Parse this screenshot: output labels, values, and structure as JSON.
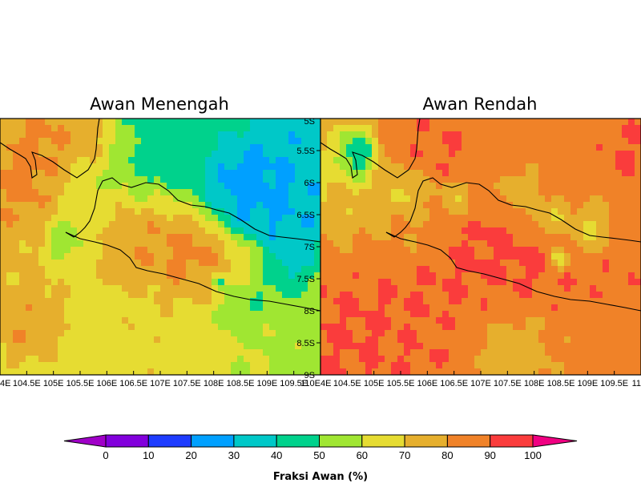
{
  "chart_data": [
    {
      "type": "heatmap",
      "title": "Awan Menengah",
      "xlim": [
        104,
        110
      ],
      "ylim": [
        -9,
        -5
      ],
      "x_ticks": [
        "4E",
        "104.5E",
        "105E",
        "105.5E",
        "106E",
        "106.5E",
        "107E",
        "107.5E",
        "108E",
        "108.5E",
        "109E",
        "109.5E",
        "110E"
      ],
      "y_ticks": [
        "5S",
        "5.5S",
        "6S",
        "6.5S",
        "7S",
        "7.5S",
        "8S",
        "8.5S",
        "9S"
      ],
      "blobs": [
        {
          "lon": 104.3,
          "lat": -6.0,
          "r": 0.9,
          "v": 90
        },
        {
          "lon": 105.0,
          "lat": -5.4,
          "r": 0.7,
          "v": 88
        },
        {
          "lon": 105.8,
          "lat": -5.3,
          "r": 0.5,
          "v": 82
        },
        {
          "lon": 104.6,
          "lat": -8.2,
          "r": 0.55,
          "v": 92
        },
        {
          "lon": 104.2,
          "lat": -7.6,
          "r": 0.7,
          "v": 75
        },
        {
          "lon": 105.8,
          "lat": -8.1,
          "r": 1.2,
          "v": 68
        },
        {
          "lon": 107.0,
          "lat": -8.6,
          "r": 1.2,
          "v": 70
        },
        {
          "lon": 106.4,
          "lat": -6.9,
          "r": 0.6,
          "v": 88
        },
        {
          "lon": 107.1,
          "lat": -7.0,
          "r": 0.65,
          "v": 92
        },
        {
          "lon": 107.7,
          "lat": -7.2,
          "r": 0.55,
          "v": 92
        },
        {
          "lon": 108.3,
          "lat": -7.35,
          "r": 0.4,
          "v": 85
        },
        {
          "lon": 106.1,
          "lat": -6.3,
          "r": 0.35,
          "v": 70
        },
        {
          "lon": 108.8,
          "lat": -7.3,
          "r": 0.35,
          "v": 80
        },
        {
          "lon": 107.0,
          "lat": -5.3,
          "r": 1.1,
          "v": 40
        },
        {
          "lon": 108.5,
          "lat": -6.0,
          "r": 0.55,
          "v": 15
        },
        {
          "lon": 109.3,
          "lat": -6.3,
          "r": 0.9,
          "v": 22
        },
        {
          "lon": 109.6,
          "lat": -5.4,
          "r": 0.7,
          "v": 28
        },
        {
          "lon": 109.2,
          "lat": -7.2,
          "r": 0.45,
          "v": 25
        },
        {
          "lon": 108.1,
          "lat": -7.55,
          "r": 0.1,
          "v": 12
        },
        {
          "lon": 108.6,
          "lat": -7.7,
          "r": 0.5,
          "v": 42
        },
        {
          "lon": 109.5,
          "lat": -8.2,
          "r": 0.7,
          "v": 55
        },
        {
          "lon": 105.2,
          "lat": -6.9,
          "r": 0.3,
          "v": 45
        },
        {
          "lon": 105.7,
          "lat": -6.1,
          "r": 0.5,
          "v": 55
        },
        {
          "lon": 108.8,
          "lat": -8.6,
          "r": 0.6,
          "v": 62
        }
      ],
      "base_value": 55
    },
    {
      "type": "heatmap",
      "title": "Awan Rendah",
      "xlim": [
        104,
        110
      ],
      "ylim": [
        -9,
        -5
      ],
      "x_ticks": [
        "4E",
        "104.5E",
        "105E",
        "105.5E",
        "106E",
        "106.5E",
        "107E",
        "107.5E",
        "108E",
        "108.5E",
        "109E",
        "109.5E",
        "11"
      ],
      "blobs": [
        {
          "lon": 104.8,
          "lat": -8.0,
          "r": 1.3,
          "v": 92
        },
        {
          "lon": 104.3,
          "lat": -8.8,
          "r": 0.8,
          "v": 92
        },
        {
          "lon": 105.5,
          "lat": -8.6,
          "r": 0.8,
          "v": 90
        },
        {
          "lon": 106.6,
          "lat": -7.1,
          "r": 0.9,
          "v": 92
        },
        {
          "lon": 107.6,
          "lat": -7.2,
          "r": 0.8,
          "v": 93
        },
        {
          "lon": 108.5,
          "lat": -7.0,
          "r": 0.6,
          "v": 92
        },
        {
          "lon": 109.4,
          "lat": -7.3,
          "r": 0.5,
          "v": 90
        },
        {
          "lon": 105.5,
          "lat": -5.5,
          "r": 0.5,
          "v": 90
        },
        {
          "lon": 106.3,
          "lat": -5.5,
          "r": 0.35,
          "v": 92
        },
        {
          "lon": 109.8,
          "lat": -5.5,
          "r": 0.45,
          "v": 92
        },
        {
          "lon": 104.7,
          "lat": -5.6,
          "r": 0.35,
          "v": 15
        },
        {
          "lon": 104.3,
          "lat": -6.0,
          "r": 0.6,
          "v": 62
        },
        {
          "lon": 104.7,
          "lat": -6.6,
          "r": 0.7,
          "v": 72
        },
        {
          "lon": 105.6,
          "lat": -6.1,
          "r": 0.3,
          "v": 50
        },
        {
          "lon": 108.3,
          "lat": -6.6,
          "r": 0.3,
          "v": 50
        },
        {
          "lon": 109.0,
          "lat": -6.8,
          "r": 0.35,
          "v": 50
        },
        {
          "lon": 108.5,
          "lat": -7.2,
          "r": 0.15,
          "v": 15
        },
        {
          "lon": 107.7,
          "lat": -6.2,
          "r": 0.3,
          "v": 65
        },
        {
          "lon": 106.5,
          "lat": -6.3,
          "r": 0.3,
          "v": 60
        },
        {
          "lon": 107.5,
          "lat": -8.6,
          "r": 0.6,
          "v": 70
        },
        {
          "lon": 105.8,
          "lat": -6.8,
          "r": 0.4,
          "v": 72
        }
      ],
      "base_value": 84
    }
  ],
  "colorbar": {
    "title": "Fraksi Awan (%)",
    "labels": [
      "0",
      "10",
      "20",
      "30",
      "40",
      "50",
      "60",
      "70",
      "80",
      "90",
      "100"
    ],
    "colors": [
      "#a000c8",
      "#8200dc",
      "#1e3cff",
      "#00a0ff",
      "#00c8c8",
      "#00d28c",
      "#a0e632",
      "#e6dc32",
      "#e6af2d",
      "#f08228",
      "#fa3c3c",
      "#f00082"
    ]
  },
  "coastline_color": "#000000"
}
